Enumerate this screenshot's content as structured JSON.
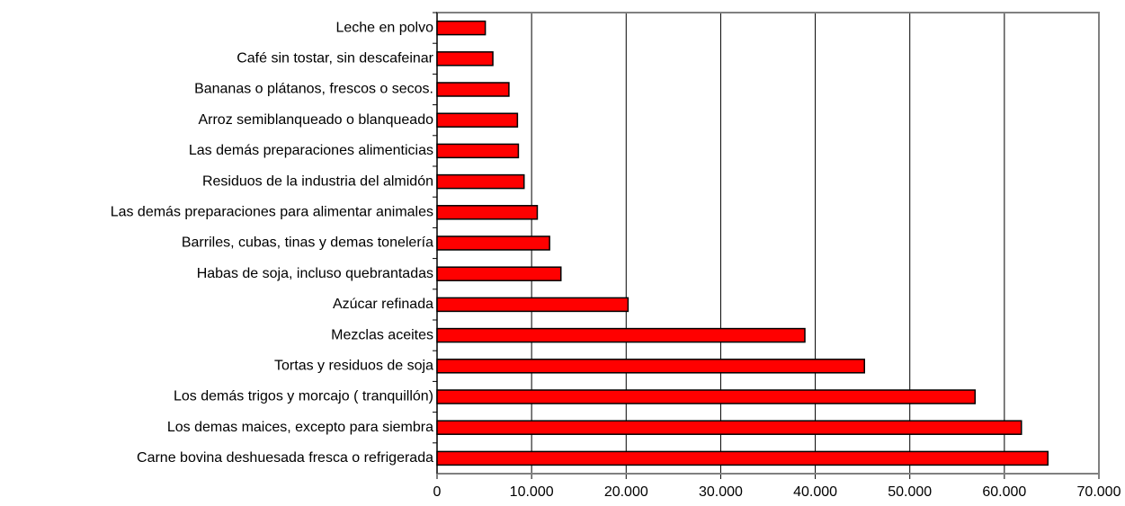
{
  "chart_data": {
    "type": "barh",
    "categories": [
      "Leche en polvo",
      "Café sin tostar, sin descafeinar",
      "Bananas o plátanos, frescos o secos.",
      "Arroz semiblanqueado o blanqueado",
      "Las demás preparaciones alimenticias",
      "Residuos de la industria del almidón",
      "Las demás preparaciones para alimentar animales",
      "Barriles, cubas, tinas y demas tonelería",
      "Habas de soja, incluso quebrantadas",
      "Azúcar refinada",
      "Mezclas aceites",
      "Tortas y residuos de soja",
      "Los demás trigos y morcajo ( tranquillón)",
      "Los demas maices, excepto para siembra",
      "Carne bovina deshuesada fresca o refrigerada"
    ],
    "values": [
      5100,
      5900,
      7600,
      8500,
      8600,
      9200,
      10600,
      11900,
      13100,
      20200,
      38900,
      45200,
      56900,
      61800,
      64600
    ],
    "color": "#ff0000",
    "xlim": [
      0,
      70000
    ],
    "xticks": [
      0,
      {
        "value": 10000,
        "label": "10.000"
      },
      {
        "value": 20000,
        "label": "20.000"
      },
      {
        "value": 30000,
        "label": "30.000"
      },
      {
        "value": 40000,
        "label": "40.000"
      },
      {
        "value": 50000,
        "label": "50.000"
      },
      {
        "value": 60000,
        "label": "60.000"
      },
      {
        "value": 70000,
        "label": "70.000"
      }
    ],
    "grid": true
  }
}
